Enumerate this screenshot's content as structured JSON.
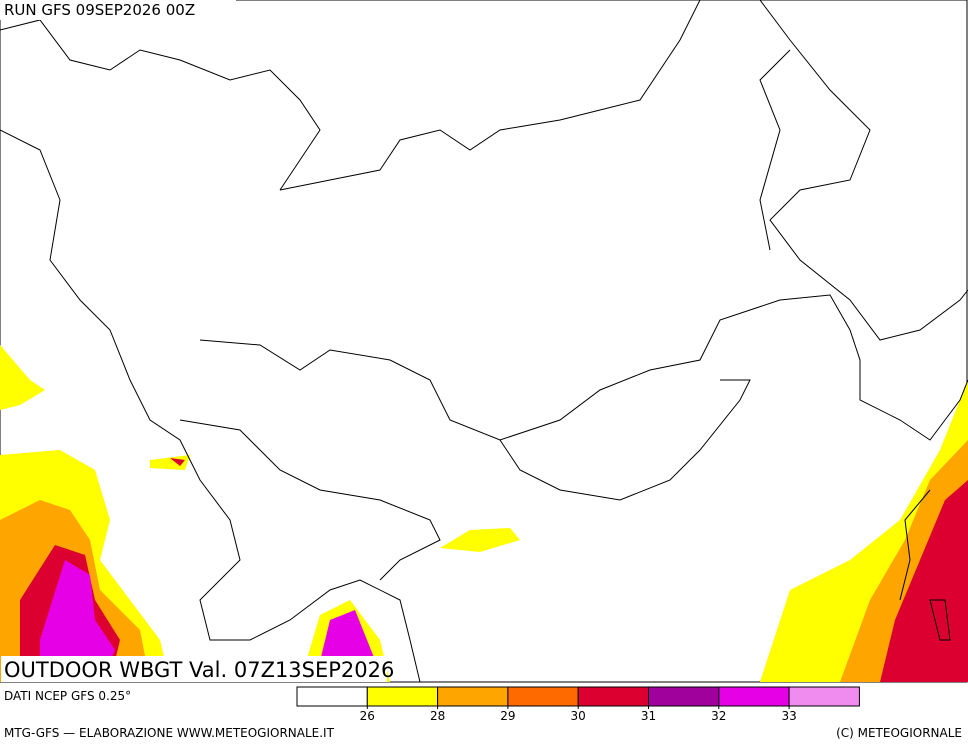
{
  "header": {
    "run": "RUN GFS 09SEP2026 00Z",
    "title": "OUTDOOR WBGT Val. 07Z13SEP2026"
  },
  "source": "DATI NCEP GFS 0.25°",
  "legend": {
    "colors": [
      "#ffffff",
      "#ffff00",
      "#ffa500",
      "#ff6a00",
      "#dc0030",
      "#a0009b",
      "#e600e6",
      "#f08cf0"
    ],
    "ticks": [
      26,
      28,
      29,
      30,
      31,
      32,
      33
    ]
  },
  "footer": {
    "left": "MTG-GFS — ELABORAZIONE WWW.METEOGIORNALE.IT",
    "right": "(C) METEOGIORNALE"
  }
}
